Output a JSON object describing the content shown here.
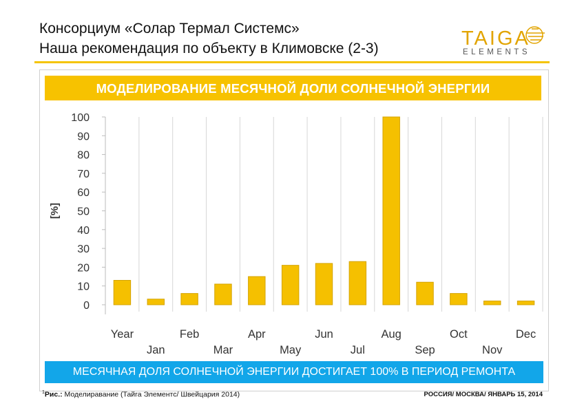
{
  "header": {
    "title_line1": "Консорциум «Солар Термал Системс»",
    "title_line2": "Наша рекомендация по объекту в Климовске (2-3)"
  },
  "logo": {
    "word": "TAIGA",
    "sub": "ELEMENTS",
    "icon": "sun-icon"
  },
  "colors": {
    "accent": "#f7c200",
    "bar": "#f5c000",
    "bar_edge": "#d4a300",
    "banner_blue": "#12a6e9"
  },
  "chart_title": "МОДЕЛИРОВАНИЕ МЕСЯЧНОЙ ДОЛИ  СОЛНЕЧНОЙ ЭНЕРГИИ",
  "chart_data": {
    "type": "bar",
    "categories": [
      "Year",
      "Jan",
      "Feb",
      "Mar",
      "Apr",
      "May",
      "Jun",
      "Jul",
      "Aug",
      "Sep",
      "Oct",
      "Nov",
      "Dec"
    ],
    "values": [
      13,
      3,
      6,
      11,
      15,
      21,
      22,
      23,
      100,
      12,
      6,
      2,
      2
    ],
    "ylabel": "[%]",
    "ylim": [
      0,
      100
    ],
    "yticks": [
      0,
      10,
      20,
      30,
      40,
      50,
      60,
      70,
      80,
      90,
      100
    ],
    "grid": "vertical",
    "legend": "none"
  },
  "banner": "МЕСЯЧНАЯ ДОЛЯ СОЛНЕЧНОЙ ЭНЕРГИИ ДОСТИГАЕТ 100% В ПЕРИОД РЕМОНТА",
  "footnote": {
    "sup": "1",
    "label": "Рис.:",
    "text": " Моделиравание  (Тайга Элементс/ Швейцария 2014)"
  },
  "footer_right": "РОССИЯ/ МОСКВА/ ЯНВАРЬ 15, 2014"
}
